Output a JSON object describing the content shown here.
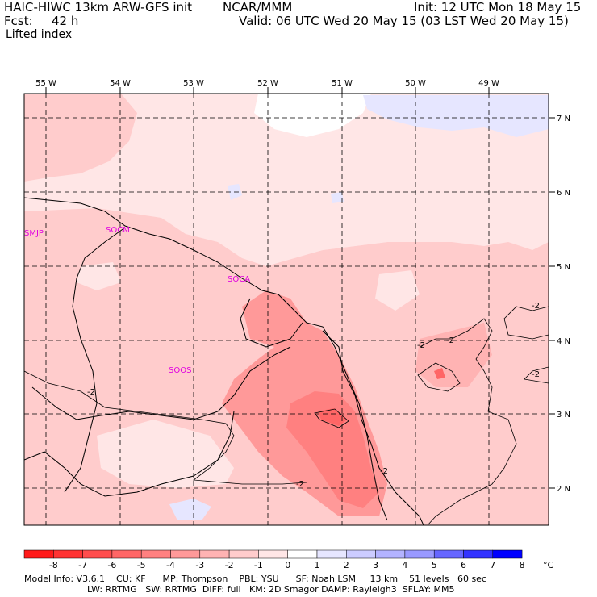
{
  "header": {
    "model": "HAIC-HIWC 13km ARW-GFS init",
    "org": "NCAR/MMM",
    "init": "Init: 12 UTC Mon 18 May 15",
    "fcst_label": "Fcst:",
    "fcst_value": "42 h",
    "valid": "Valid: 06 UTC Wed 20 May 15 (03 LST Wed 20 May 15)",
    "field": "Lifted index"
  },
  "map": {
    "lon_labels": [
      "55 W",
      "54 W",
      "53 W",
      "52 W",
      "51 W",
      "50 W",
      "49 W"
    ],
    "lat_labels": [
      "7 N",
      "6 N",
      "5 N",
      "4 N",
      "3 N",
      "2 N"
    ],
    "stations": [
      "SMJP",
      "SOCM",
      "SOCA",
      "SOOS"
    ],
    "contour_labels": [
      "-2",
      "-2",
      "-2",
      "-2",
      "-2",
      "-2",
      "-2"
    ]
  },
  "colorbar": {
    "labels": [
      "-8",
      "-7",
      "-6",
      "-5",
      "-4",
      "-3",
      "-2",
      "-1",
      "0",
      "1",
      "2",
      "3",
      "4",
      "5",
      "6",
      "7",
      "8"
    ],
    "unit": "°C",
    "colors": [
      "#ff1a1a",
      "#ff3333",
      "#ff4d4d",
      "#ff6666",
      "#ff8080",
      "#ff9999",
      "#ffb3b3",
      "#ffcccc",
      "#ffe6e6",
      "#ffffff",
      "#e6e6ff",
      "#ccccff",
      "#b3b3ff",
      "#9999ff",
      "#6666ff",
      "#3333ff",
      "#0000ff"
    ]
  },
  "footer": {
    "line1": "Model Info: V3.6.1    CU: KF      MP: Thompson    PBL: YSU      SF: Noah LSM     13 km    51 levels   60 sec",
    "line2": "LW: RRTMG   SW: RRTMG  DIFF: full   KM: 2D Smagor DAMP: Rayleigh3  SFLAY: MM5"
  }
}
